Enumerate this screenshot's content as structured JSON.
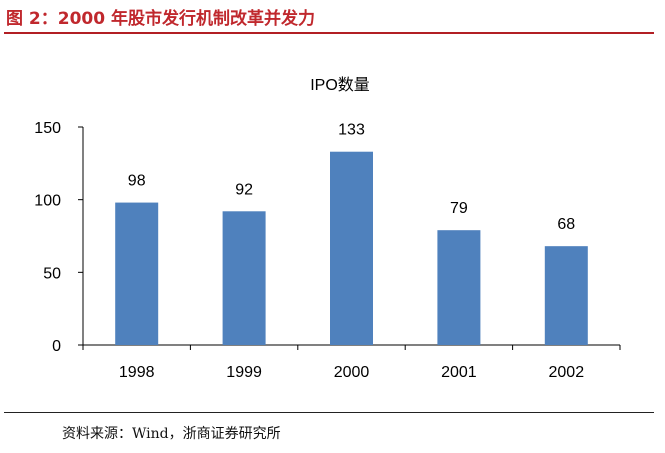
{
  "figure": {
    "title": "图 2：2000 年股市发行机制改革并发力",
    "source": "资料来源：Wind，浙商证券研究所"
  },
  "colors": {
    "title": "#c0282d",
    "rule": "#b21f24",
    "bar": "#4f81bd",
    "axis": "#000000"
  },
  "chart_data": {
    "type": "bar",
    "title": "IPO数量",
    "categories": [
      "1998",
      "1999",
      "2000",
      "2001",
      "2002"
    ],
    "values": [
      98,
      92,
      133,
      79,
      68
    ],
    "data_labels": [
      "98",
      "92",
      "133",
      "79",
      "68"
    ],
    "xlabel": "",
    "ylabel": "",
    "ylim": [
      0,
      150
    ],
    "yticks": [
      "0",
      "50",
      "100",
      "150"
    ],
    "grid": false,
    "legend": "none"
  }
}
